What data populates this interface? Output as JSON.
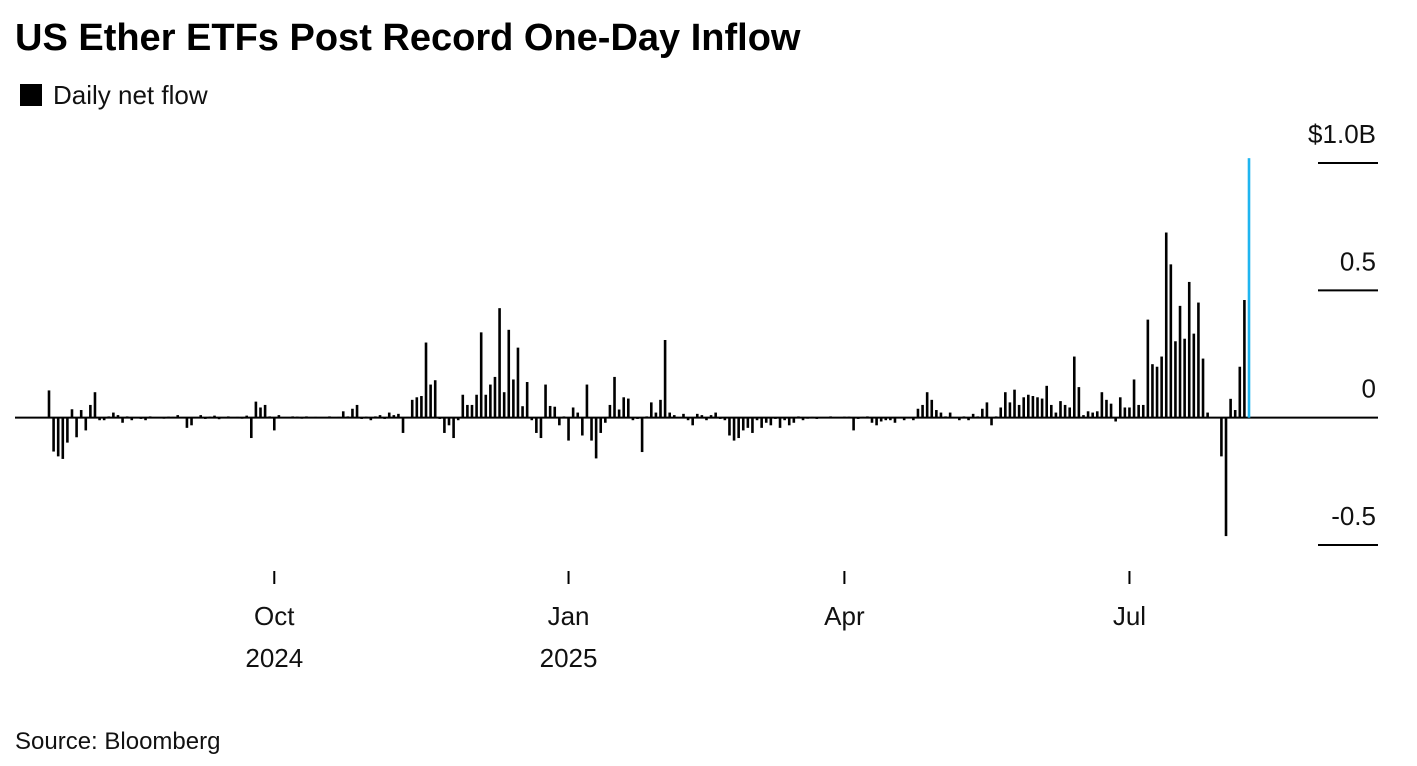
{
  "chart_data": {
    "type": "bar",
    "title": "US Ether ETFs Post Record One-Day Inflow",
    "source": "Source: Bloomberg",
    "categories": [
      null,
      null,
      null,
      null,
      null,
      null,
      null,
      null,
      null,
      null,
      null,
      null,
      null,
      null,
      null,
      null,
      null,
      null,
      null,
      null,
      null,
      null,
      null,
      null,
      null,
      null,
      null,
      null,
      null,
      null,
      null,
      null,
      null,
      null,
      null,
      null,
      null,
      null,
      null,
      null,
      null,
      null,
      null,
      null,
      null,
      null,
      null,
      null,
      null,
      "Oct 2024",
      null,
      null,
      null,
      null,
      null,
      null,
      null,
      null,
      null,
      null,
      null,
      null,
      null,
      null,
      null,
      null,
      null,
      null,
      null,
      null,
      null,
      null,
      null,
      null,
      null,
      null,
      null,
      null,
      null,
      null,
      null,
      null,
      null,
      null,
      null,
      null,
      null,
      null,
      null,
      null,
      null,
      null,
      null,
      null,
      null,
      null,
      null,
      null,
      null,
      null,
      null,
      null,
      null,
      null,
      null,
      null,
      null,
      null,
      null,
      null,
      null,
      null,
      null,
      "Jan 2025",
      null,
      null,
      null,
      null,
      null,
      null,
      null,
      null,
      null,
      null,
      null,
      null,
      null,
      null,
      null,
      null,
      null,
      null,
      null,
      null,
      null,
      null,
      null,
      null,
      null,
      null,
      null,
      null,
      null,
      null,
      null,
      null,
      null,
      null,
      null,
      null,
      null,
      null,
      null,
      null,
      null,
      null,
      null,
      null,
      null,
      null,
      null,
      null,
      null,
      null,
      null,
      null,
      null,
      null,
      null,
      null,
      null,
      null,
      null,
      "Apr",
      null,
      null,
      null,
      null,
      null,
      null,
      null,
      null,
      null,
      null,
      null,
      null,
      null,
      null,
      null,
      null,
      null,
      null,
      null,
      null,
      null,
      null,
      null,
      null,
      null,
      null,
      null,
      null,
      null,
      null,
      null,
      null,
      null,
      null,
      null,
      null,
      null,
      null,
      null,
      null,
      null,
      null,
      null,
      null,
      null,
      null,
      null,
      null,
      null,
      null,
      null,
      null,
      null,
      null,
      null,
      null,
      null,
      null,
      null,
      null,
      null,
      "Jul",
      null,
      null,
      null,
      null,
      null,
      null,
      null,
      null,
      null,
      null,
      null,
      null,
      null,
      null,
      null,
      null,
      null,
      null,
      null,
      null,
      null,
      null,
      null,
      null,
      null,
      null
    ],
    "series": [
      {
        "name": "Daily net flow",
        "color": "#000000",
        "values": [
          0.107,
          -0.133,
          -0.152,
          -0.162,
          -0.098,
          0.033,
          -0.077,
          0.03,
          -0.05,
          0.05,
          0.1,
          -0.01,
          -0.01,
          0.005,
          0.02,
          0.01,
          -0.02,
          0.005,
          -0.01,
          0,
          -0.005,
          -0.01,
          0.005,
          -0.003,
          0,
          -0.004,
          0.004,
          0.003,
          0.01,
          0,
          -0.04,
          -0.03,
          0,
          0.01,
          -0.005,
          0.004,
          0.008,
          -0.006,
          0.002,
          0.005,
          -0.003,
          0.003,
          -0.004,
          0.008,
          -0.08,
          0.063,
          0.04,
          0.05,
          0.005,
          -0.05,
          0.01,
          0,
          -0.003,
          0.005,
          0.004,
          -0.004,
          0.005,
          0,
          0.003,
          -0.003,
          0.002,
          0.005,
          -0.002,
          0.003,
          0.025,
          0.005,
          0.035,
          0.05,
          -0.005,
          0.004,
          -0.01,
          0.005,
          0.01,
          -0.005,
          0.02,
          0.01,
          0.015,
          -0.06,
          0.003,
          0.07,
          0.08,
          0.085,
          0.295,
          0.13,
          0.147,
          -0.005,
          -0.06,
          -0.03,
          -0.08,
          -0.01,
          0.09,
          0.05,
          0.05,
          0.09,
          0.335,
          0.09,
          0.13,
          0.16,
          0.43,
          0.1,
          0.345,
          0.15,
          0.275,
          0.045,
          0.14,
          -0.01,
          -0.06,
          -0.08,
          0.13,
          0.046,
          0.043,
          -0.03,
          0.005,
          -0.09,
          0.04,
          0.02,
          -0.07,
          0.13,
          -0.09,
          -0.16,
          -0.06,
          -0.02,
          0.05,
          0.16,
          0.032,
          0.08,
          0.075,
          -0.01,
          -0.005,
          -0.135,
          0.005,
          0.06,
          0.02,
          0.07,
          0.305,
          0.02,
          0.01,
          0,
          0.015,
          -0.01,
          -0.03,
          0.015,
          0.01,
          -0.01,
          0.01,
          0.02,
          -0.005,
          -0.01,
          -0.07,
          -0.09,
          -0.08,
          -0.05,
          -0.04,
          -0.06,
          -0.01,
          -0.04,
          -0.02,
          -0.03,
          -0.005,
          -0.04,
          -0.01,
          -0.03,
          -0.02,
          0.005,
          -0.01,
          -0.004,
          0.003,
          -0.005,
          0.002,
          -0.003,
          0.005,
          -0.003,
          0.002,
          0.004,
          0.004,
          -0.05,
          -0.005,
          0.003,
          0.005,
          -0.02,
          -0.03,
          -0.015,
          -0.01,
          -0.01,
          -0.02,
          -0.003,
          -0.01,
          0.002,
          -0.01,
          0.035,
          0.05,
          0.1,
          0.07,
          0.03,
          0.02,
          0.005,
          0.02,
          0,
          -0.01,
          0.005,
          -0.01,
          0.015,
          0.005,
          0.035,
          0.06,
          -0.03,
          0.005,
          0.04,
          0.1,
          0.06,
          0.11,
          0.05,
          0.08,
          0.09,
          0.085,
          0.08,
          0.075,
          0.125,
          0.05,
          0.02,
          0.065,
          0.05,
          0.04,
          0.24,
          0.12,
          0.01,
          0.025,
          0.02,
          0.025,
          0.1,
          0.07,
          0.055,
          -0.015,
          0.08,
          0.04,
          0.04,
          0.15,
          0.05,
          0.05,
          0.385,
          0.21,
          0.2,
          0.24,
          0.727,
          0.602,
          0.3,
          0.439,
          0.31,
          0.533,
          0.33,
          0.452,
          0.232,
          0.02,
          0.001,
          -0.001,
          -0.152,
          -0.465,
          0.074,
          0.03,
          0.2,
          0.462,
          1.019
        ]
      }
    ],
    "highlight_color": "#1fb5f0",
    "ylim": [
      -0.5,
      1.0
    ],
    "yticks": [
      {
        "value": 1.0,
        "label": "$1.0B"
      },
      0.5,
      0,
      -0.5
    ]
  }
}
